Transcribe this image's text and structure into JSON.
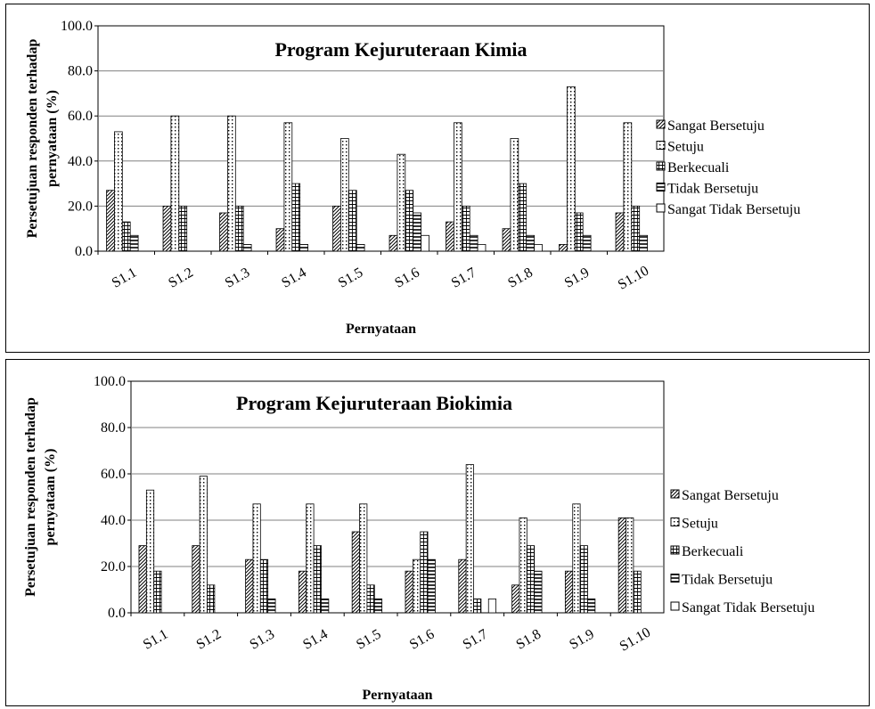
{
  "chart_data": [
    {
      "type": "bar",
      "title": "Program Kejuruteraan Kimia",
      "xlabel": "Pernyataan",
      "ylabel": "Persetujuan responden terhadap pernyataan (%)",
      "ylim": [
        0,
        100
      ],
      "yticks": [
        "0.0",
        "20.0",
        "40.0",
        "60.0",
        "80.0",
        "100.0"
      ],
      "grid": true,
      "legend_position": "right",
      "categories": [
        "S1.1",
        "S1.2",
        "S1.3",
        "S1.4",
        "S1.5",
        "S1.6",
        "S1.7",
        "S1.8",
        "S1.9",
        "S1.10"
      ],
      "series": [
        {
          "name": "Sangat Bersetuju",
          "values": [
            27,
            20,
            17,
            10,
            20,
            7,
            13,
            10,
            3,
            17
          ]
        },
        {
          "name": "Setuju",
          "values": [
            53,
            60,
            60,
            57,
            50,
            43,
            57,
            50,
            73,
            57
          ]
        },
        {
          "name": "Berkecuali",
          "values": [
            13,
            20,
            20,
            30,
            27,
            27,
            20,
            30,
            17,
            20
          ]
        },
        {
          "name": "Tidak Bersetuju",
          "values": [
            7,
            0,
            3,
            3,
            3,
            17,
            7,
            7,
            7,
            7
          ]
        },
        {
          "name": "Sangat Tidak Bersetuju",
          "values": [
            0,
            0,
            0,
            0,
            0,
            7,
            3,
            3,
            0,
            0
          ]
        }
      ]
    },
    {
      "type": "bar",
      "title": "Program Kejuruteraan Biokimia",
      "xlabel": "Pernyataan",
      "ylabel": "Persetujuan responden terhadap pernyataan (%)",
      "ylim": [
        0,
        100
      ],
      "yticks": [
        "0.0",
        "20.0",
        "40.0",
        "60.0",
        "80.0",
        "100.0"
      ],
      "grid": true,
      "legend_position": "right",
      "categories": [
        "S1.1",
        "S1.2",
        "S1.3",
        "S1.4",
        "S1.5",
        "S1.6",
        "S1.7",
        "S1.8",
        "S1.9",
        "S1.10"
      ],
      "series": [
        {
          "name": "Sangat Bersetuju",
          "values": [
            29,
            29,
            23,
            18,
            35,
            18,
            23,
            12,
            18,
            41
          ]
        },
        {
          "name": "Setuju",
          "values": [
            53,
            59,
            47,
            47,
            47,
            23,
            64,
            41,
            47,
            41
          ]
        },
        {
          "name": "Berkecuali",
          "values": [
            18,
            12,
            23,
            29,
            12,
            35,
            6,
            29,
            29,
            18
          ]
        },
        {
          "name": "Tidak Bersetuju",
          "values": [
            0,
            0,
            6,
            6,
            6,
            23,
            0,
            18,
            6,
            0
          ]
        },
        {
          "name": "Sangat Tidak Bersetuju",
          "values": [
            0,
            0,
            0,
            0,
            0,
            0,
            6,
            0,
            0,
            0
          ]
        }
      ]
    }
  ]
}
